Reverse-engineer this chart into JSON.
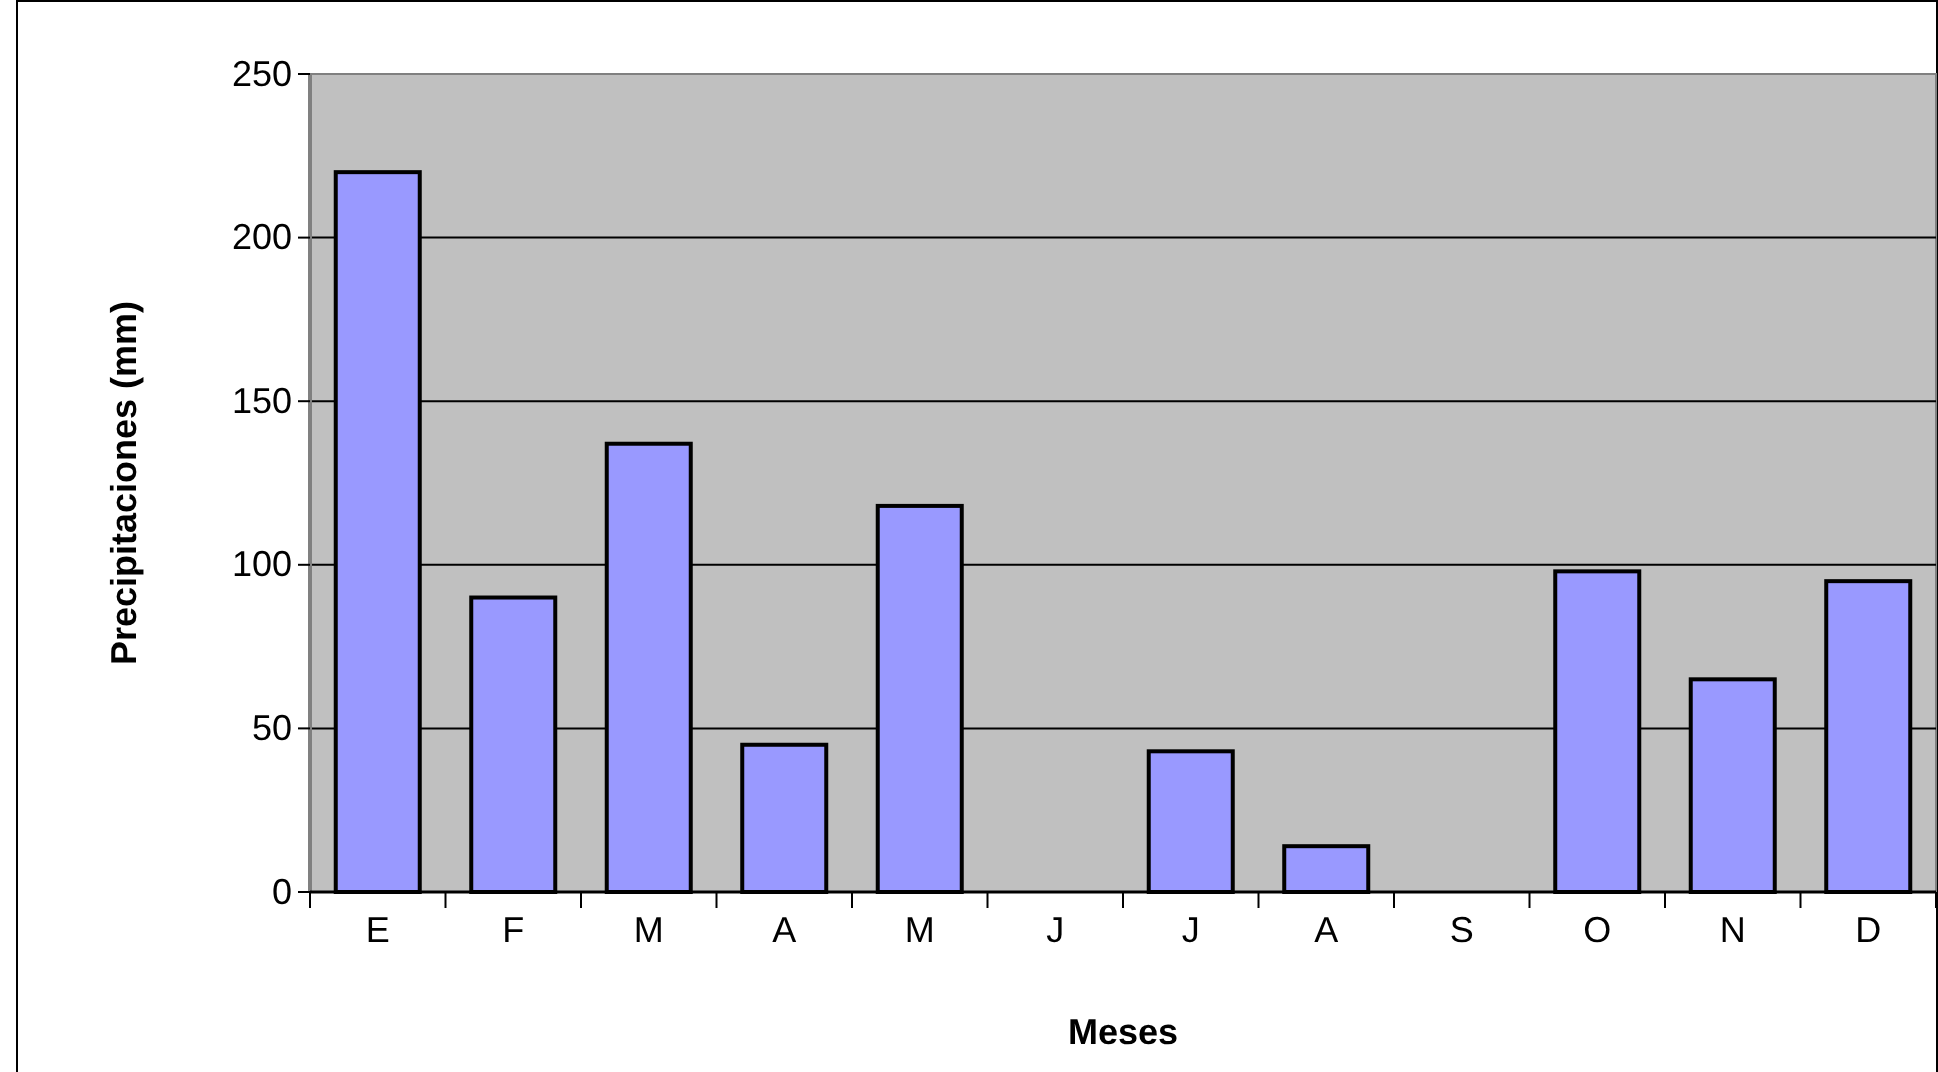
{
  "chart_data": {
    "type": "bar",
    "xlabel": "Meses",
    "ylabel": "Precipitaciones (mm)",
    "categories": [
      "E",
      "F",
      "M",
      "A",
      "M",
      "J",
      "J",
      "A",
      "S",
      "O",
      "N",
      "D"
    ],
    "values": [
      220,
      90,
      137,
      45,
      118,
      0,
      43,
      14,
      0,
      98,
      65,
      95
    ],
    "color": "#9999ff",
    "ylim": [
      0,
      250
    ],
    "yticks": [
      0,
      50,
      100,
      150,
      200,
      250
    ],
    "grid": "y"
  }
}
